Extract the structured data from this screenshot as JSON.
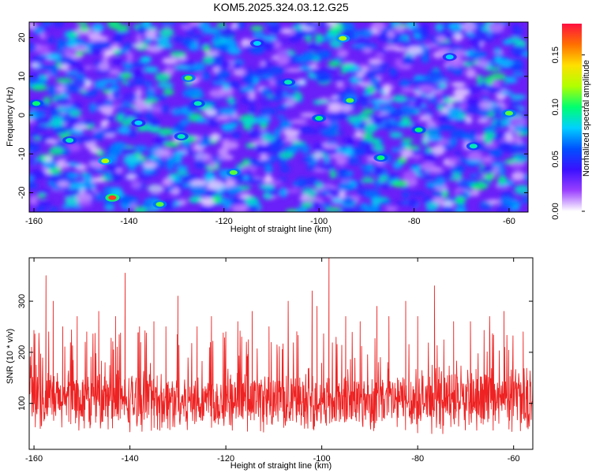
{
  "title": "KOM5.2025.324.03.12.G25",
  "chart_data": [
    {
      "type": "heatmap",
      "xlabel": "Height of straight line (km)",
      "ylabel": "Frequency (Hz)",
      "xlim": [
        -161,
        -56
      ],
      "ylim": [
        -25,
        24
      ],
      "xticks": [
        -160,
        -140,
        -120,
        -100,
        -80,
        -60
      ],
      "yticks": [
        -20,
        -10,
        0,
        10,
        20
      ],
      "colorbar": {
        "label": "Normalized spectral amplitude",
        "range": [
          0,
          0.18
        ],
        "ticks": [
          "0.00",
          "0.05",
          "0.10",
          "0.15"
        ],
        "colors": [
          "#ffffff",
          "#9a40ff",
          "#3a10ff",
          "#0050ff",
          "#00d0ff",
          "#00ff70",
          "#b0ff00",
          "#ffe000",
          "#ff7000",
          "#ff1040"
        ]
      },
      "hotspots": [
        {
          "x": -143.5,
          "y": -21.3,
          "value": 0.17
        },
        {
          "x": -145.0,
          "y": -11.8,
          "value": 0.12
        },
        {
          "x": -118.0,
          "y": -14.8,
          "value": 0.11
        },
        {
          "x": -133.5,
          "y": -23.0,
          "value": 0.11
        },
        {
          "x": -127.5,
          "y": 9.6,
          "value": 0.11
        },
        {
          "x": -95.0,
          "y": 19.8,
          "value": 0.12
        },
        {
          "x": -93.5,
          "y": 3.8,
          "value": 0.11
        },
        {
          "x": -100.0,
          "y": -0.8,
          "value": 0.1
        },
        {
          "x": -79.0,
          "y": -3.8,
          "value": 0.1
        },
        {
          "x": -87.0,
          "y": -11.0,
          "value": 0.1
        },
        {
          "x": -60.0,
          "y": 0.5,
          "value": 0.11
        },
        {
          "x": -159.5,
          "y": 3.0,
          "value": 0.1
        },
        {
          "x": -152.5,
          "y": -6.5,
          "value": 0.09
        },
        {
          "x": -106.5,
          "y": 8.5,
          "value": 0.09
        },
        {
          "x": -125.5,
          "y": 3.0,
          "value": 0.09
        },
        {
          "x": -67.5,
          "y": -8.0,
          "value": 0.09
        },
        {
          "x": -129.0,
          "y": -5.5,
          "value": 0.09
        },
        {
          "x": -113.0,
          "y": 18.5,
          "value": 0.08
        },
        {
          "x": -72.5,
          "y": 15.0,
          "value": 0.08
        },
        {
          "x": -138.0,
          "y": -2.0,
          "value": 0.08
        }
      ]
    },
    {
      "type": "line",
      "xlabel": "Height of straight line (km)",
      "ylabel": "SNR (10 * v/v)",
      "xlim": [
        -161,
        -56
      ],
      "ylim": [
        10,
        385
      ],
      "xticks": [
        -160,
        -140,
        -120,
        -100,
        -80,
        -60
      ],
      "yticks": [
        100,
        200,
        300
      ],
      "color": "#ee2222",
      "series": [
        {
          "x_start": -161,
          "x_end": -56,
          "baseline": 105,
          "noise_spread": 60,
          "peaks": [
            {
              "x": -160.5,
              "y": 210
            },
            {
              "x": -157.5,
              "y": 350
            },
            {
              "x": -156.0,
              "y": 300
            },
            {
              "x": -154.0,
              "y": 250
            },
            {
              "x": -151.0,
              "y": 270
            },
            {
              "x": -149.0,
              "y": 240
            },
            {
              "x": -146.5,
              "y": 280
            },
            {
              "x": -143.0,
              "y": 270
            },
            {
              "x": -141.0,
              "y": 355
            },
            {
              "x": -138.0,
              "y": 250
            },
            {
              "x": -135.0,
              "y": 260
            },
            {
              "x": -132.5,
              "y": 250
            },
            {
              "x": -130.0,
              "y": 310
            },
            {
              "x": -126.0,
              "y": 250
            },
            {
              "x": -123.0,
              "y": 270
            },
            {
              "x": -120.0,
              "y": 240
            },
            {
              "x": -117.5,
              "y": 260
            },
            {
              "x": -114.5,
              "y": 280
            },
            {
              "x": -111.0,
              "y": 250
            },
            {
              "x": -107.0,
              "y": 300
            },
            {
              "x": -102.0,
              "y": 320
            },
            {
              "x": -101.0,
              "y": 290
            },
            {
              "x": -98.5,
              "y": 385
            },
            {
              "x": -95.0,
              "y": 270
            },
            {
              "x": -92.0,
              "y": 260
            },
            {
              "x": -88.5,
              "y": 290
            },
            {
              "x": -86.0,
              "y": 270
            },
            {
              "x": -82.5,
              "y": 300
            },
            {
              "x": -80.0,
              "y": 270
            },
            {
              "x": -76.5,
              "y": 330
            },
            {
              "x": -72.5,
              "y": 260
            },
            {
              "x": -69.0,
              "y": 260
            },
            {
              "x": -65.0,
              "y": 270
            },
            {
              "x": -62.0,
              "y": 280
            },
            {
              "x": -58.0,
              "y": 240
            }
          ]
        }
      ]
    }
  ]
}
